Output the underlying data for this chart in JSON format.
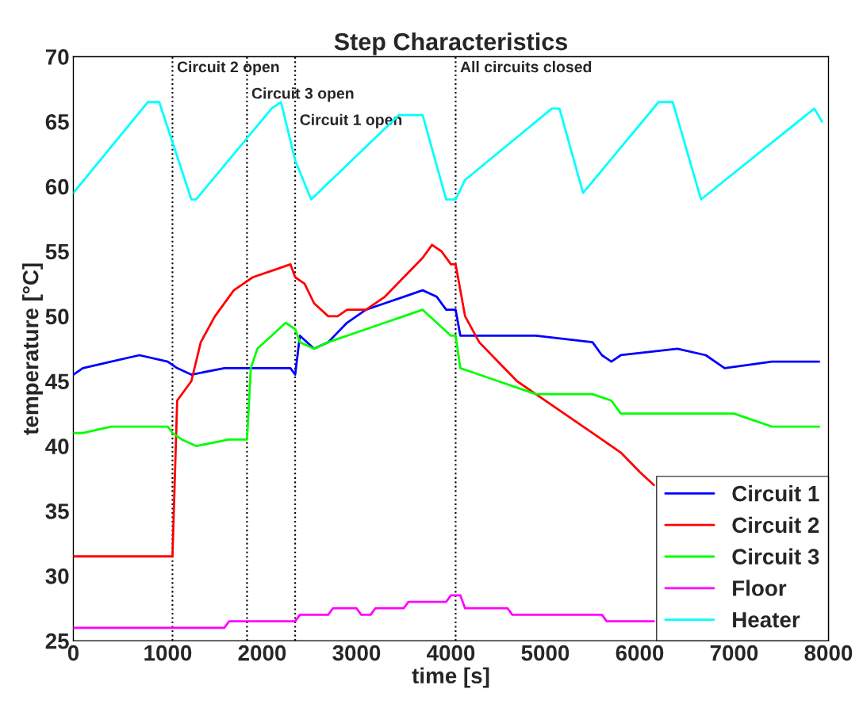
{
  "chart_data": {
    "type": "line",
    "title": "Step Characteristics",
    "xlabel": "time [s]",
    "ylabel": "temperature [°C]",
    "xlim": [
      0,
      8000
    ],
    "xticks": [
      0,
      1000,
      2000,
      3000,
      4000,
      5000,
      6000,
      7000,
      8000
    ],
    "ylim": [
      25,
      70
    ],
    "yticks": [
      25,
      30,
      35,
      40,
      45,
      50,
      55,
      60,
      65,
      70
    ],
    "legend": "bottom right",
    "grid": false,
    "line_style": "solid",
    "marker": "none",
    "ref_lines": [
      {
        "axis": "x",
        "value": 1050,
        "label": "Circuit 2 open",
        "color": "#000000",
        "line_style": "dotted"
      },
      {
        "axis": "x",
        "value": 1840,
        "label": "Circuit 3 open",
        "color": "#000000",
        "line_style": "dotted"
      },
      {
        "axis": "x",
        "value": 2350,
        "label": "Circuit 1 open",
        "color": "#000000",
        "line_style": "dotted"
      },
      {
        "axis": "x",
        "value": 4050,
        "label": "All circuits closed",
        "color": "#000000",
        "line_style": "dotted"
      }
    ],
    "series": [
      {
        "name": "Circuit 1",
        "color": "#0000ff",
        "x": [
          0,
          100,
          400,
          700,
          1000,
          1100,
          1250,
          1600,
          2300,
          2350,
          2400,
          2550,
          2700,
          2900,
          3100,
          3300,
          3500,
          3700,
          3850,
          3950,
          4050,
          4100,
          4900,
          5500,
          5600,
          5700,
          5800,
          6400,
          6700,
          6900,
          7400,
          7900
        ],
        "values": [
          45.5,
          46,
          46.5,
          47,
          46.5,
          46,
          45.5,
          46,
          46,
          45.5,
          48.5,
          47.5,
          48,
          49.5,
          50.5,
          51,
          51.5,
          52,
          51.5,
          50.5,
          50.5,
          48.5,
          48.5,
          48,
          47,
          46.5,
          47,
          47.5,
          47,
          46,
          46.5,
          46.5
        ]
      },
      {
        "name": "Circuit 2",
        "color": "#ff0000",
        "x": [
          0,
          1050,
          1100,
          1250,
          1350,
          1500,
          1700,
          1900,
          2100,
          2300,
          2350,
          2450,
          2550,
          2700,
          2800,
          2900,
          3100,
          3300,
          3500,
          3700,
          3800,
          3900,
          4000,
          4050,
          4150,
          4300,
          4500,
          4700,
          4900,
          5200,
          5500,
          5800,
          6000,
          6150
        ],
        "values": [
          31.5,
          31.5,
          43.5,
          45,
          48,
          50,
          52,
          53,
          53.5,
          54,
          53,
          52.5,
          51,
          50,
          50,
          50.5,
          50.5,
          51.5,
          53,
          54.5,
          55.5,
          55,
          54,
          54,
          50,
          48,
          46.5,
          45,
          44,
          42.5,
          41,
          39.5,
          38,
          37
        ]
      },
      {
        "name": "Circuit 3",
        "color": "#00ff00",
        "x": [
          0,
          100,
          400,
          1000,
          1050,
          1150,
          1300,
          1650,
          1840,
          1880,
          1950,
          2100,
          2250,
          2350,
          2400,
          2550,
          2700,
          3100,
          3300,
          3500,
          3700,
          3850,
          4000,
          4050,
          4100,
          4300,
          4500,
          4700,
          4900,
          5500,
          5700,
          5800,
          7000,
          7200,
          7400,
          7500,
          7900
        ],
        "values": [
          41,
          41,
          41.5,
          41.5,
          41,
          40.5,
          40,
          40.5,
          40.5,
          46,
          47.5,
          48.5,
          49.5,
          49,
          48,
          47.5,
          48,
          49,
          49.5,
          50,
          50.5,
          49.5,
          48.5,
          48.5,
          46,
          45.5,
          45,
          44.5,
          44,
          44,
          43.5,
          42.5,
          42.5,
          42,
          41.5,
          41.5,
          41.5
        ]
      },
      {
        "name": "Floor",
        "color": "#ff00ff",
        "x": [
          0,
          1600,
          1650,
          2350,
          2400,
          2700,
          2750,
          3000,
          3050,
          3150,
          3200,
          3500,
          3550,
          3950,
          4000,
          4100,
          4150,
          4600,
          4650,
          5600,
          5650,
          6150
        ],
        "values": [
          26,
          26,
          26.5,
          26.5,
          27,
          27,
          27.5,
          27.5,
          27,
          27,
          27.5,
          27.5,
          28,
          28,
          28.5,
          28.5,
          27.5,
          27.5,
          27,
          27,
          26.5,
          26.5
        ]
      },
      {
        "name": "Heater",
        "color": "#00ffff",
        "x": [
          0,
          790,
          910,
          1250,
          1300,
          2100,
          2200,
          2350,
          2520,
          3450,
          3700,
          3950,
          4050,
          4150,
          5070,
          5150,
          5400,
          6200,
          6350,
          6650,
          7850,
          7930
        ],
        "values": [
          59.5,
          66.5,
          66.5,
          59,
          59,
          66,
          66.5,
          62,
          59,
          65.5,
          65.5,
          59,
          59,
          60.5,
          66,
          66,
          59.5,
          66.5,
          66.5,
          59,
          66,
          65
        ]
      }
    ]
  }
}
